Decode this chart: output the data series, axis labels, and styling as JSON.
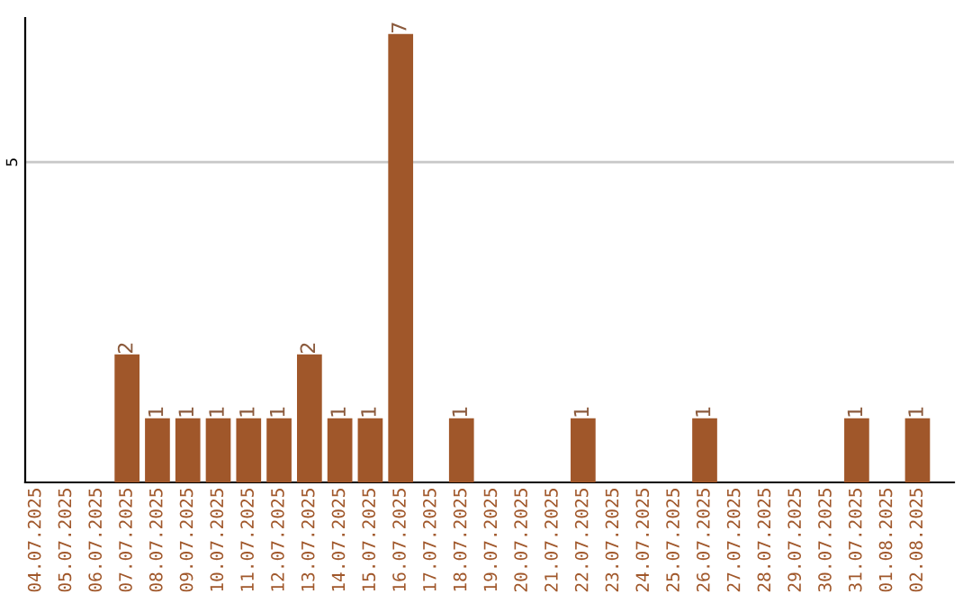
{
  "chart_data": {
    "type": "bar",
    "categories": [
      "04.07.2025",
      "05.07.2025",
      "06.07.2025",
      "07.07.2025",
      "08.07.2025",
      "09.07.2025",
      "10.07.2025",
      "11.07.2025",
      "12.07.2025",
      "13.07.2025",
      "14.07.2025",
      "15.07.2025",
      "16.07.2025",
      "17.07.2025",
      "18.07.2025",
      "19.07.2025",
      "20.07.2025",
      "21.07.2025",
      "22.07.2025",
      "23.07.2025",
      "24.07.2025",
      "25.07.2025",
      "26.07.2025",
      "27.07.2025",
      "28.07.2025",
      "29.07.2025",
      "30.07.2025",
      "31.07.2025",
      "01.08.2025",
      "02.08.2025"
    ],
    "values": [
      0,
      0,
      0,
      2,
      1,
      1,
      1,
      1,
      1,
      2,
      1,
      1,
      7,
      0,
      1,
      0,
      0,
      0,
      1,
      0,
      0,
      0,
      1,
      0,
      0,
      0,
      0,
      1,
      0,
      1
    ],
    "value_labels": [
      null,
      null,
      null,
      "2",
      "1",
      "1",
      "1",
      "1",
      "1",
      "2",
      "1",
      "1",
      "7",
      null,
      "1",
      null,
      null,
      null,
      "1",
      null,
      null,
      null,
      "1",
      null,
      null,
      null,
      null,
      "1",
      null,
      "1"
    ],
    "color": "#a0572a",
    "ylim": [
      0,
      7.25
    ],
    "yticks": [
      5
    ],
    "grid": "y"
  }
}
